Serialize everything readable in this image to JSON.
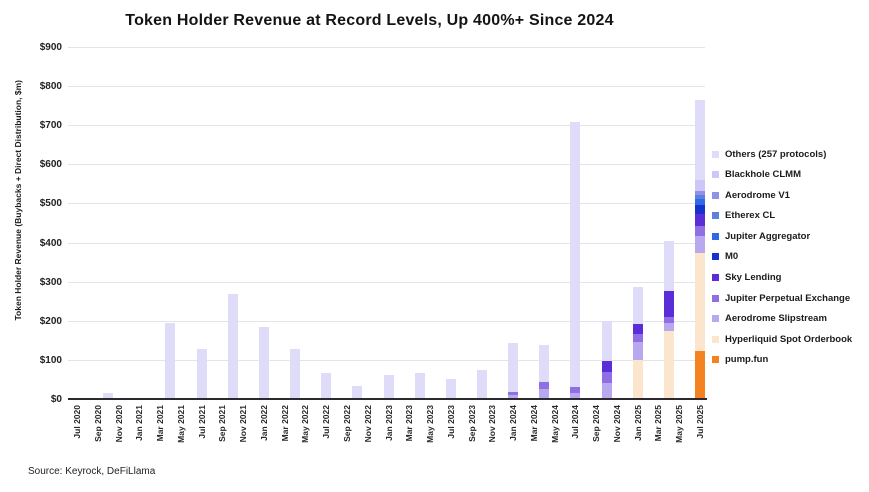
{
  "title": "Token Holder Revenue at Record Levels, Up 400%+ Since 2024",
  "source": "Source: Keyrock, DeFiLlama",
  "colors": {
    "background": "#ffffff",
    "gridline": "#e4e4e8",
    "axis_line": "#2a2a2e",
    "text": "#1c1c1e"
  },
  "chart_data": {
    "type": "bar",
    "stacked": true,
    "title": "Token Holder Revenue at Record Levels, Up 400%+ Since 2024",
    "xlabel": "",
    "ylabel": "Token Holder Revenue (Buybacks + Direct Distribution, $m)",
    "ylim": [
      0,
      900
    ],
    "ytick_step": 100,
    "ytick_prefix": "$",
    "grid": true,
    "legend_position": "right",
    "x_tick_labels": [
      "Jul 2020",
      "Sep 2020",
      "Nov 2020",
      "Jan 2021",
      "Mar 2021",
      "May 2021",
      "Jul 2021",
      "Sep 2021",
      "Nov 2021",
      "Jan 2022",
      "Mar 2022",
      "May 2022",
      "Jul 2022",
      "Sep 2022",
      "Nov 2022",
      "Jan 2023",
      "Mar 2023",
      "May 2023",
      "Jul 2023",
      "Sep 2023",
      "Nov 2023",
      "Jan 2024",
      "Mar 2024",
      "May 2024",
      "Jul 2024",
      "Sep 2024",
      "Nov 2024",
      "Jan 2025",
      "Mar 2025",
      "May 2025",
      "Jul 2025"
    ],
    "x_months_span": 60,
    "bars": {
      "labels": [
        "Oct 2020",
        "Jan 2021",
        "Apr 2021",
        "Jul 2021",
        "Oct 2021",
        "Jan 2022",
        "Apr 2022",
        "Jul 2022",
        "Oct 2022",
        "Jan 2023",
        "Apr 2023",
        "Jul 2023",
        "Oct 2023",
        "Jan 2024",
        "Apr 2024",
        "Jul 2024",
        "Oct 2024",
        "Jan 2025",
        "Apr 2025",
        "Jul 2025"
      ],
      "month_index": [
        3,
        6,
        9,
        12,
        15,
        18,
        21,
        24,
        27,
        30,
        33,
        36,
        39,
        42,
        45,
        48,
        51,
        54,
        57,
        60
      ]
    },
    "series": [
      {
        "name": "pump.fun",
        "color": "#f58220",
        "values": [
          0,
          0,
          0,
          0,
          0,
          0,
          0,
          0,
          0,
          0,
          0,
          0,
          0,
          0,
          0,
          0,
          0,
          0,
          0,
          122
        ]
      },
      {
        "name": "Hyperliquid Spot Orderbook",
        "color": "#fce5cd",
        "values": [
          0,
          0,
          0,
          0,
          0,
          0,
          0,
          0,
          0,
          0,
          0,
          0,
          0,
          0,
          0,
          0,
          0,
          100,
          175,
          252
        ]
      },
      {
        "name": "Aerodrome Slipstream",
        "color": "#b7a8f0",
        "values": [
          0,
          0,
          0,
          0,
          0,
          0,
          0,
          0,
          0,
          0,
          0,
          0,
          0,
          9,
          26,
          16,
          40,
          46,
          20,
          43
        ]
      },
      {
        "name": "Jupiter Perpetual Exchange",
        "color": "#8f6fe3",
        "values": [
          0,
          0,
          0,
          0,
          0,
          0,
          0,
          0,
          0,
          0,
          0,
          0,
          0,
          8,
          17,
          16,
          30,
          21,
          15,
          26
        ]
      },
      {
        "name": "Sky Lending",
        "color": "#5a2dd8",
        "values": [
          0,
          0,
          0,
          0,
          0,
          0,
          0,
          0,
          0,
          0,
          0,
          0,
          0,
          0,
          0,
          0,
          27,
          25,
          65,
          31
        ]
      },
      {
        "name": "M0",
        "color": "#1631cd",
        "values": [
          0,
          0,
          0,
          0,
          0,
          0,
          0,
          0,
          0,
          0,
          0,
          0,
          0,
          0,
          0,
          0,
          0,
          0,
          0,
          22
        ]
      },
      {
        "name": "Jupiter Aggregator",
        "color": "#2d6ae3",
        "values": [
          0,
          0,
          0,
          0,
          0,
          0,
          0,
          0,
          0,
          0,
          0,
          0,
          0,
          0,
          0,
          0,
          0,
          0,
          0,
          16
        ]
      },
      {
        "name": "Etherex CL",
        "color": "#5c80dd",
        "values": [
          0,
          0,
          0,
          0,
          0,
          0,
          0,
          0,
          0,
          0,
          0,
          0,
          0,
          0,
          0,
          0,
          0,
          0,
          0,
          10
        ]
      },
      {
        "name": "Aerodrome V1",
        "color": "#8e93e6",
        "values": [
          0,
          0,
          0,
          0,
          0,
          0,
          0,
          0,
          0,
          0,
          0,
          0,
          0,
          0,
          0,
          0,
          0,
          0,
          0,
          10
        ]
      },
      {
        "name": "Blackhole CLMM",
        "color": "#cdc6f6",
        "values": [
          0,
          0,
          0,
          0,
          0,
          0,
          0,
          0,
          0,
          0,
          0,
          0,
          0,
          0,
          0,
          0,
          0,
          0,
          0,
          28
        ]
      },
      {
        "name": "Others (257 protocols)",
        "color": "#dedcf9",
        "values": [
          16,
          2,
          195,
          129,
          268,
          185,
          128,
          67,
          33,
          62,
          66,
          50,
          75,
          126,
          96,
          676,
          103,
          95,
          130,
          205
        ]
      }
    ]
  }
}
